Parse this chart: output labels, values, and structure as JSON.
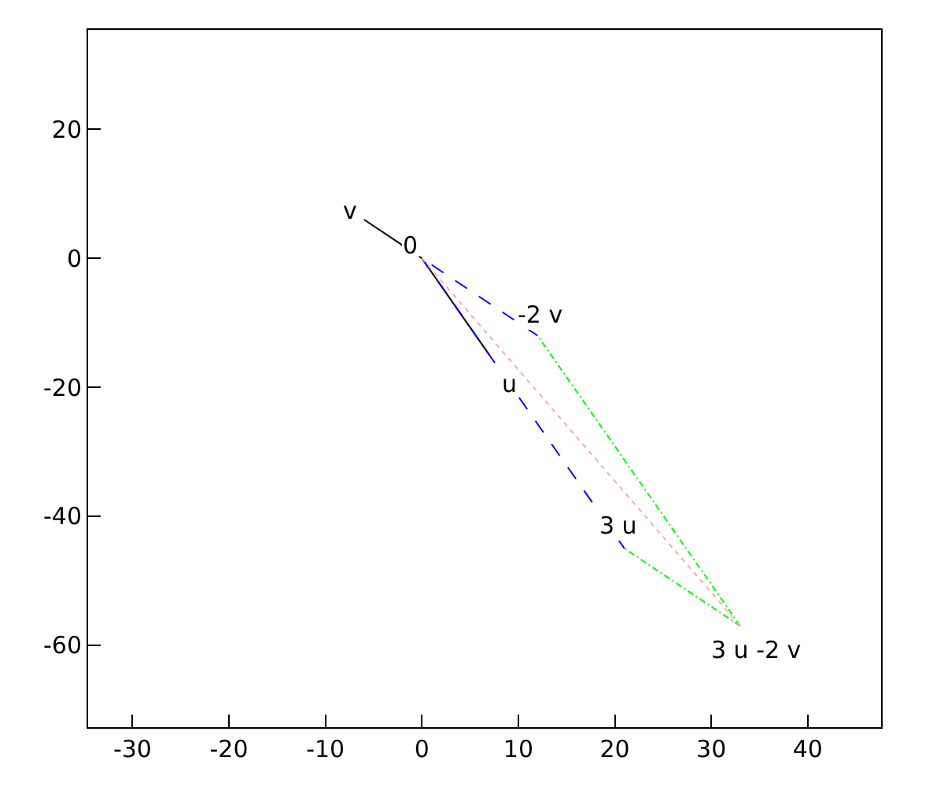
{
  "chart_data": {
    "type": "line",
    "xlim": [
      -34.6,
      47.6
    ],
    "ylim": [
      -72.7,
      35.4
    ],
    "xticks": [
      -30,
      -20,
      -10,
      0,
      10,
      20,
      30,
      40
    ],
    "yticks": [
      -60,
      -40,
      -20,
      0,
      20
    ],
    "marker": "none",
    "series": [
      {
        "color": "#000000",
        "line_style": "solid",
        "x": [
          -6,
          0,
          7
        ],
        "values": [
          6,
          0,
          -15
        ]
      },
      {
        "color": "#0000ff",
        "line_style": "dashed",
        "x": [
          0,
          21
        ],
        "values": [
          0,
          -45
        ]
      },
      {
        "color": "#0000ff",
        "line_style": "dashed",
        "x": [
          12,
          0
        ],
        "values": [
          -12,
          0
        ]
      },
      {
        "color": "#00ff00",
        "line_style": "dashdot",
        "x": [
          33,
          21
        ],
        "values": [
          -57,
          -45
        ]
      },
      {
        "color": "#00ff00",
        "line_style": "dashdot",
        "x": [
          33,
          12
        ],
        "values": [
          -57,
          -12
        ]
      },
      {
        "color": "#ffaaaa",
        "line_style": "dotted",
        "x": [
          0,
          33
        ],
        "values": [
          0,
          -57
        ]
      }
    ],
    "annotations": [
      {
        "text": "v",
        "x": -6,
        "y": 6
      },
      {
        "text": "0",
        "x": 0,
        "y": 0
      },
      {
        "text": "u",
        "x": 7,
        "y": -15
      },
      {
        "text": "-2 v",
        "x": 12,
        "y": -12
      },
      {
        "text": "3 u",
        "x": 21,
        "y": -45
      },
      {
        "text": "3 u -2 v",
        "x": 33,
        "y": -57
      }
    ]
  }
}
